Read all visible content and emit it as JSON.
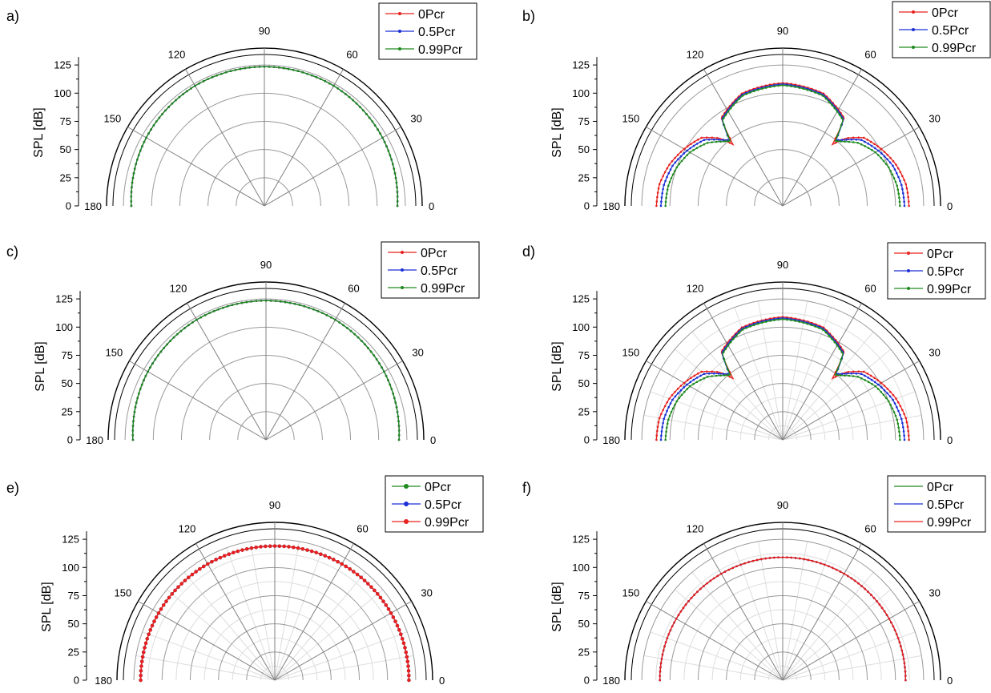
{
  "colors": {
    "red": "#e8201e",
    "blue": "#1a2fd6",
    "green": "#1e8a1e",
    "grid_major": "#9a9a9a",
    "grid_minor": "#dddddd"
  },
  "chart_data": [
    {
      "panel_label": "a)",
      "type": "polar-half",
      "ylabel": "SPL [dB]",
      "r_ticks": [
        0,
        25,
        50,
        75,
        100,
        125
      ],
      "r_range": [
        0,
        125
      ],
      "angle_labels": [
        "0",
        "30",
        "60",
        "90",
        "120",
        "150",
        "180"
      ],
      "angle_range_deg": [
        0,
        180
      ],
      "minor_grid": false,
      "legend_position": "top-right",
      "legend_marker": "tri",
      "series": [
        {
          "name": "0Pcr",
          "color": "red",
          "values_note": "",
          "spl_db": {
            "0": 118,
            "30": 121,
            "60": 123,
            "90": 123.5,
            "120": 123,
            "150": 121,
            "180": 118
          }
        },
        {
          "name": "0.5Pcr",
          "color": "blue",
          "spl_db": {
            "0": 118,
            "30": 121,
            "60": 123,
            "90": 123.5,
            "120": 123,
            "150": 121,
            "180": 118
          }
        },
        {
          "name": "0.99Pcr",
          "color": "green",
          "spl_db": {
            "0": 118,
            "30": 121,
            "60": 123,
            "90": 123.5,
            "120": 123,
            "150": 121,
            "180": 118
          }
        }
      ]
    },
    {
      "panel_label": "b)",
      "type": "polar-half",
      "ylabel": "SPL [dB]",
      "r_ticks": [
        0,
        25,
        50,
        75,
        100,
        125
      ],
      "r_range": [
        0,
        125
      ],
      "angle_labels": [
        "0",
        "30",
        "60",
        "90",
        "120",
        "150",
        "180"
      ],
      "angle_range_deg": [
        0,
        180
      ],
      "minor_grid": false,
      "legend_position": "top-right",
      "legend_marker": "tri",
      "series": [
        {
          "name": "0Pcr",
          "color": "red",
          "spl_db": {
            "0": 112,
            "10": 111,
            "20": 107,
            "30": 101,
            "40": 94,
            "47": 82,
            "51": 70,
            "55": 95,
            "70": 106,
            "90": 109,
            "110": 106,
            "125": 95,
            "129": 70,
            "133": 82,
            "140": 94,
            "150": 101,
            "160": 107,
            "170": 111,
            "180": 112
          }
        },
        {
          "name": "0.5Pcr",
          "color": "blue",
          "spl_db": {
            "0": 108,
            "10": 107,
            "20": 104,
            "30": 98,
            "40": 91,
            "47": 80,
            "51": 75,
            "55": 94,
            "70": 105,
            "90": 108,
            "110": 105,
            "125": 94,
            "129": 75,
            "133": 80,
            "140": 91,
            "150": 98,
            "160": 104,
            "170": 107,
            "180": 108
          }
        },
        {
          "name": "0.99Pcr",
          "color": "green",
          "spl_db": {
            "0": 104,
            "10": 103,
            "20": 100,
            "30": 95,
            "40": 87,
            "47": 78,
            "51": 74,
            "55": 93,
            "70": 104,
            "90": 107,
            "110": 104,
            "125": 93,
            "129": 74,
            "133": 78,
            "140": 87,
            "150": 95,
            "160": 100,
            "170": 103,
            "180": 104
          }
        }
      ]
    },
    {
      "panel_label": "c)",
      "type": "polar-half",
      "ylabel": "SPL [dB]",
      "r_ticks": [
        0,
        25,
        50,
        75,
        100,
        125
      ],
      "r_range": [
        0,
        125
      ],
      "angle_labels": [
        "0",
        "30",
        "60",
        "90",
        "120",
        "150",
        "180"
      ],
      "angle_range_deg": [
        0,
        180
      ],
      "minor_grid": false,
      "legend_position": "top-right",
      "legend_marker": "tri",
      "series": [
        {
          "name": "0Pcr",
          "color": "red",
          "spl_db": {
            "0": 118,
            "30": 121,
            "60": 123,
            "90": 123.5,
            "120": 123,
            "150": 121,
            "180": 118
          }
        },
        {
          "name": "0.5Pcr",
          "color": "blue",
          "spl_db": {
            "0": 118,
            "30": 121,
            "60": 123,
            "90": 123.5,
            "120": 123,
            "150": 121,
            "180": 118
          }
        },
        {
          "name": "0.99Pcr",
          "color": "green",
          "spl_db": {
            "0": 118,
            "30": 121,
            "60": 123,
            "90": 123.5,
            "120": 123,
            "150": 121,
            "180": 118
          }
        }
      ]
    },
    {
      "panel_label": "d)",
      "type": "polar-half",
      "ylabel": "SPL [dB]",
      "r_ticks": [
        0,
        25,
        50,
        75,
        100,
        125
      ],
      "r_range": [
        0,
        125
      ],
      "angle_labels": [
        "0",
        "30",
        "60",
        "90",
        "120",
        "150",
        "180"
      ],
      "angle_range_deg": [
        0,
        180
      ],
      "minor_grid": true,
      "legend_position": "top-right",
      "legend_marker": "tri",
      "series": [
        {
          "name": "0Pcr",
          "color": "red",
          "spl_db": {
            "0": 112,
            "10": 111,
            "20": 107,
            "30": 101,
            "40": 94,
            "47": 82,
            "51": 70,
            "55": 95,
            "70": 106,
            "90": 109,
            "110": 106,
            "125": 95,
            "129": 70,
            "133": 82,
            "140": 94,
            "150": 101,
            "160": 107,
            "170": 111,
            "180": 112
          }
        },
        {
          "name": "0.5Pcr",
          "color": "blue",
          "spl_db": {
            "0": 108,
            "10": 107,
            "20": 104,
            "30": 98,
            "40": 91,
            "47": 80,
            "51": 75,
            "55": 94,
            "70": 105,
            "90": 108,
            "110": 105,
            "125": 94,
            "129": 75,
            "133": 80,
            "140": 91,
            "150": 98,
            "160": 104,
            "170": 107,
            "180": 108
          }
        },
        {
          "name": "0.99Pcr",
          "color": "green",
          "spl_db": {
            "0": 104,
            "10": 103,
            "20": 100,
            "30": 95,
            "40": 87,
            "47": 78,
            "51": 74,
            "55": 93,
            "70": 104,
            "90": 107,
            "110": 104,
            "125": 93,
            "129": 74,
            "133": 78,
            "140": 87,
            "150": 95,
            "160": 100,
            "170": 103,
            "180": 104
          }
        }
      ]
    },
    {
      "panel_label": "e)",
      "type": "polar-half",
      "ylabel": "SPL [dB]",
      "r_ticks": [
        0,
        25,
        50,
        75,
        100,
        125
      ],
      "r_range": [
        0,
        125
      ],
      "angle_labels": [
        "0",
        "30",
        "60",
        "90",
        "120",
        "150",
        "180"
      ],
      "angle_range_deg": [
        0,
        180
      ],
      "minor_grid": true,
      "legend_position": "top-right",
      "legend_marker": "dot",
      "series": [
        {
          "name": "0Pcr",
          "color": "green",
          "spl_db": {
            "0": 119,
            "90": 119,
            "180": 119
          }
        },
        {
          "name": "0.5Pcr",
          "color": "blue",
          "spl_db": {
            "0": 119,
            "90": 119,
            "180": 119
          }
        },
        {
          "name": "0.99Pcr",
          "color": "red",
          "spl_db": {
            "0": 119,
            "90": 119,
            "180": 119
          }
        }
      ]
    },
    {
      "panel_label": "f)",
      "type": "polar-half",
      "ylabel": "SPL [dB]",
      "r_ticks": [
        0,
        25,
        50,
        75,
        100,
        125
      ],
      "r_range": [
        0,
        125
      ],
      "angle_labels": [
        "0",
        "30",
        "60",
        "90",
        "120",
        "150",
        "180"
      ],
      "angle_range_deg": [
        0,
        180
      ],
      "minor_grid": true,
      "legend_position": "top-right",
      "legend_marker": "line",
      "series": [
        {
          "name": "0Pcr",
          "color": "green",
          "spl_db": {
            "0": 109,
            "90": 109,
            "180": 109
          }
        },
        {
          "name": "0.5Pcr",
          "color": "blue",
          "spl_db": {
            "0": 109,
            "90": 109,
            "180": 109
          }
        },
        {
          "name": "0.99Pcr",
          "color": "red",
          "spl_db": {
            "0": 109,
            "90": 109,
            "180": 109
          }
        }
      ]
    }
  ]
}
